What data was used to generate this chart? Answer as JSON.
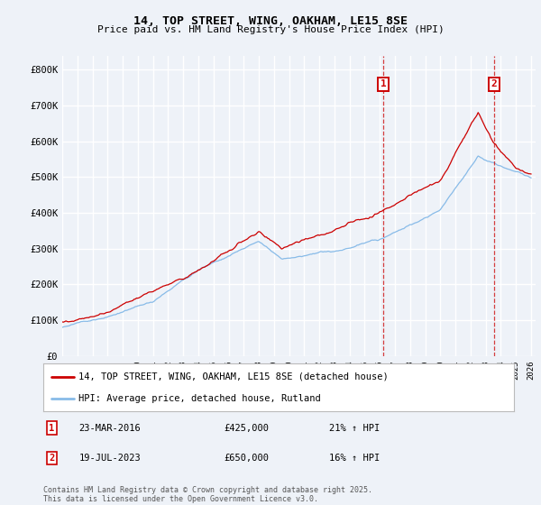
{
  "title_line1": "14, TOP STREET, WING, OAKHAM, LE15 8SE",
  "title_line2": "Price paid vs. HM Land Registry's House Price Index (HPI)",
  "ylim": [
    0,
    840000
  ],
  "yticks": [
    0,
    100000,
    200000,
    300000,
    400000,
    500000,
    600000,
    700000,
    800000
  ],
  "ytick_labels": [
    "£0",
    "£100K",
    "£200K",
    "£300K",
    "£400K",
    "£500K",
    "£600K",
    "£700K",
    "£800K"
  ],
  "x_start_year": 1995,
  "x_end_year": 2026,
  "legend_entries": [
    "14, TOP STREET, WING, OAKHAM, LE15 8SE (detached house)",
    "HPI: Average price, detached house, Rutland"
  ],
  "legend_colors": [
    "#cc0000",
    "#6699cc"
  ],
  "event1_year": 2016.22,
  "event1_label": "1",
  "event1_date": "23-MAR-2016",
  "event1_price": "£425,000",
  "event1_hpi": "21% ↑ HPI",
  "event2_year": 2023.55,
  "event2_label": "2",
  "event2_date": "19-JUL-2023",
  "event2_price": "£650,000",
  "event2_hpi": "16% ↑ HPI",
  "footnote": "Contains HM Land Registry data © Crown copyright and database right 2025.\nThis data is licensed under the Open Government Licence v3.0.",
  "background_color": "#eef2f8",
  "grid_color": "#ffffff",
  "line_color_red": "#cc0000",
  "line_color_blue": "#88bbe8"
}
